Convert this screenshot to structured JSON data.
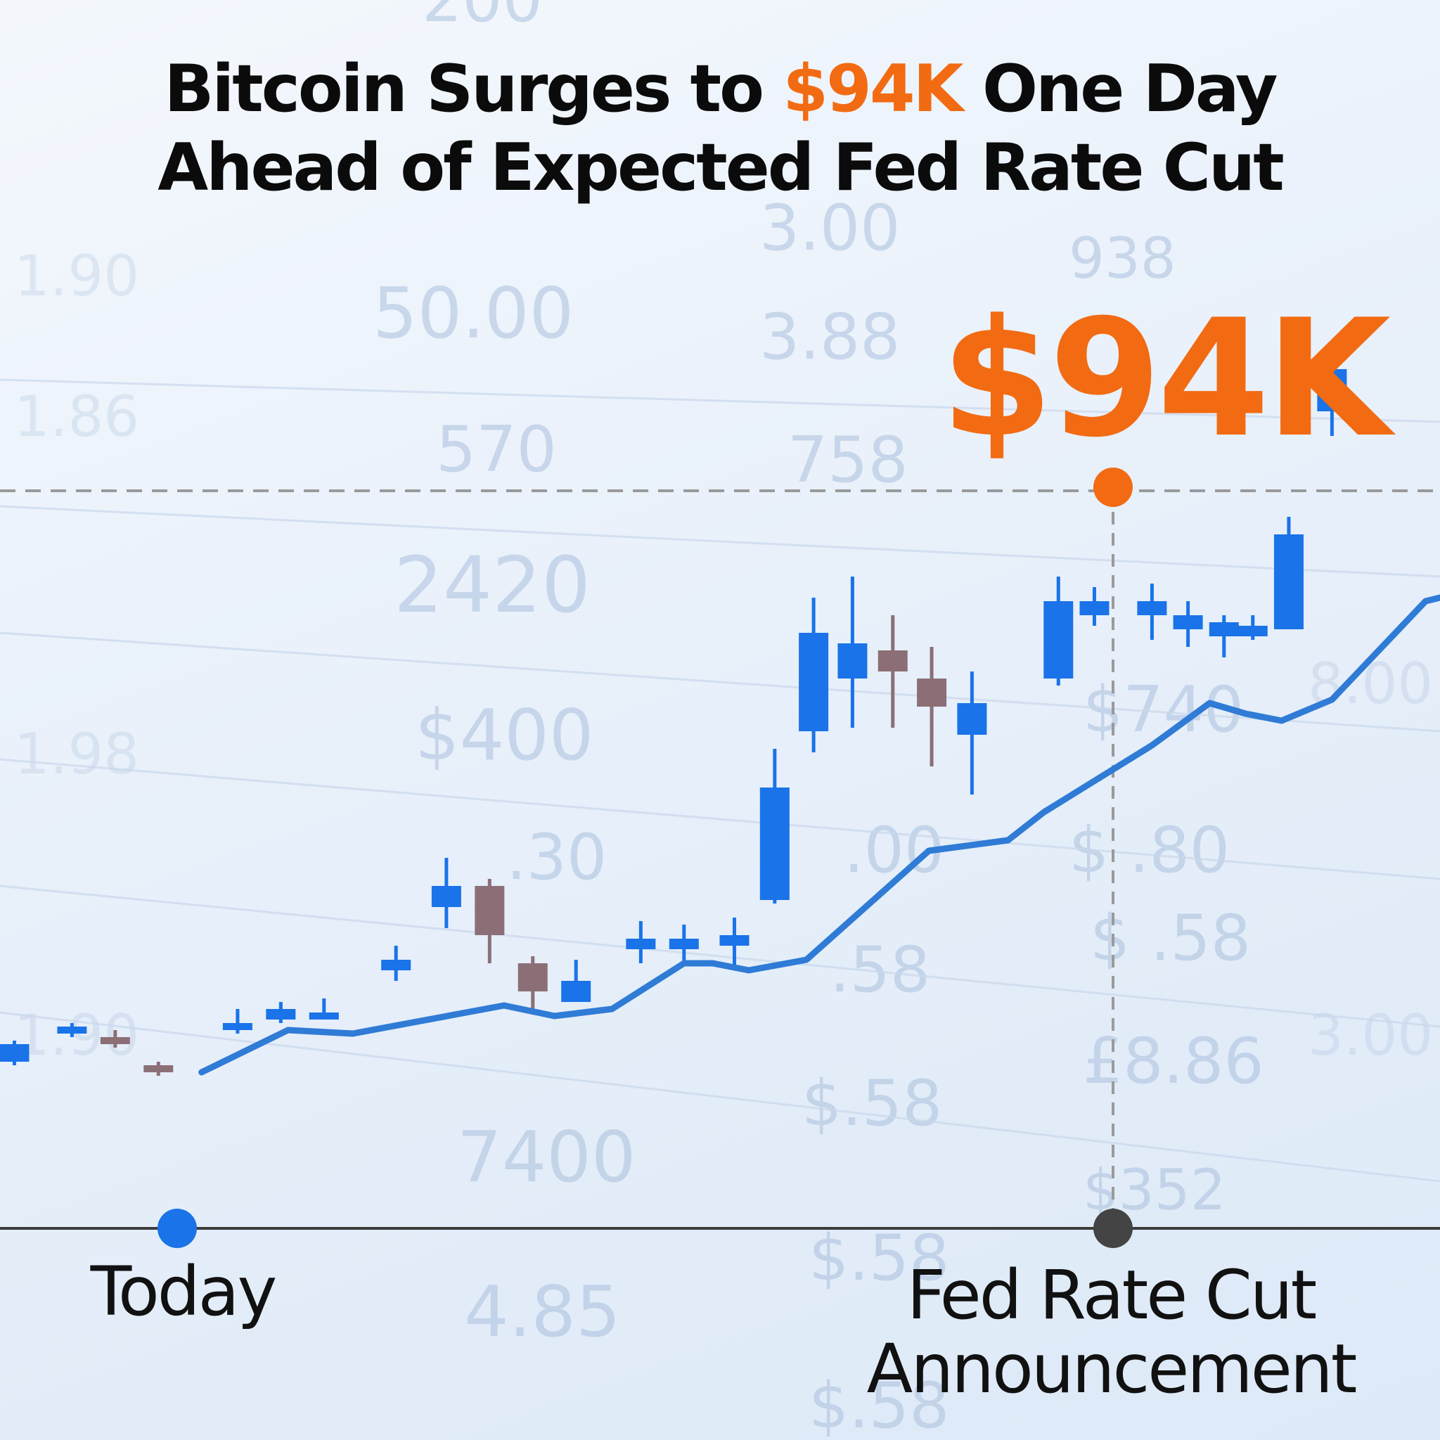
{
  "headline": {
    "before": "Bitcoin Surges to ",
    "highlight": "$94K",
    "after_line1": " One Day",
    "line2": "Ahead of Expected Fed Rate Cut"
  },
  "callout": {
    "price": "$94K"
  },
  "colors": {
    "accent": "#f26b12",
    "bull": "#1a73e8",
    "bear": "#8c6f76",
    "line": "#2f7bd6",
    "today_marker": "#1a73e8",
    "fed_marker": "#444444"
  },
  "chart_data": {
    "type": "line",
    "annotations": [
      {
        "label": "Today",
        "x": 0.12
      },
      {
        "label": "Fed Rate Cut Announcement",
        "x": 0.77
      }
    ],
    "peak_label": "$94K",
    "series": [
      {
        "type": "candlestick",
        "values": [
          {
            "x": 0.01,
            "open": 0.1,
            "close": 0.15,
            "high": 0.16,
            "low": 0.09
          },
          {
            "x": 0.05,
            "open": 0.18,
            "close": 0.2,
            "high": 0.21,
            "low": 0.17
          },
          {
            "x": 0.08,
            "open": 0.17,
            "close": 0.15,
            "high": 0.19,
            "low": 0.14
          },
          {
            "x": 0.11,
            "open": 0.09,
            "close": 0.07,
            "high": 0.1,
            "low": 0.06
          },
          {
            "x": 0.165,
            "open": 0.19,
            "close": 0.21,
            "high": 0.25,
            "low": 0.18
          },
          {
            "x": 0.195,
            "open": 0.22,
            "close": 0.25,
            "high": 0.27,
            "low": 0.21
          },
          {
            "x": 0.225,
            "open": 0.22,
            "close": 0.24,
            "high": 0.28,
            "low": 0.22
          },
          {
            "x": 0.275,
            "open": 0.36,
            "close": 0.39,
            "high": 0.43,
            "low": 0.33
          },
          {
            "x": 0.31,
            "open": 0.54,
            "close": 0.6,
            "high": 0.68,
            "low": 0.48
          },
          {
            "x": 0.34,
            "open": 0.6,
            "close": 0.46,
            "high": 0.62,
            "low": 0.38
          },
          {
            "x": 0.37,
            "open": 0.38,
            "close": 0.3,
            "high": 0.4,
            "low": 0.24
          },
          {
            "x": 0.4,
            "open": 0.27,
            "close": 0.33,
            "high": 0.39,
            "low": 0.27
          },
          {
            "x": 0.445,
            "open": 0.42,
            "close": 0.45,
            "high": 0.5,
            "low": 0.38
          },
          {
            "x": 0.475,
            "open": 0.42,
            "close": 0.45,
            "high": 0.49,
            "low": 0.38
          },
          {
            "x": 0.51,
            "open": 0.43,
            "close": 0.46,
            "high": 0.51,
            "low": 0.37
          },
          {
            "x": 0.538,
            "open": 0.56,
            "close": 0.88,
            "high": 0.99,
            "low": 0.55
          },
          {
            "x": 0.565,
            "open": 1.04,
            "close": 1.32,
            "high": 1.42,
            "low": 0.98
          },
          {
            "x": 0.592,
            "open": 1.19,
            "close": 1.29,
            "high": 1.48,
            "low": 1.05
          },
          {
            "x": 0.62,
            "open": 1.27,
            "close": 1.21,
            "high": 1.37,
            "low": 1.05
          },
          {
            "x": 0.647,
            "open": 1.19,
            "close": 1.11,
            "high": 1.28,
            "low": 0.94
          },
          {
            "x": 0.675,
            "open": 1.03,
            "close": 1.12,
            "high": 1.21,
            "low": 0.86
          },
          {
            "x": 0.735,
            "open": 1.19,
            "close": 1.41,
            "high": 1.48,
            "low": 1.17
          },
          {
            "x": 0.76,
            "open": 1.37,
            "close": 1.41,
            "high": 1.45,
            "low": 1.34
          },
          {
            "x": 0.8,
            "open": 1.37,
            "close": 1.41,
            "high": 1.46,
            "low": 1.3
          },
          {
            "x": 0.825,
            "open": 1.33,
            "close": 1.37,
            "high": 1.41,
            "low": 1.28
          },
          {
            "x": 0.85,
            "open": 1.31,
            "close": 1.35,
            "high": 1.37,
            "low": 1.25
          },
          {
            "x": 0.87,
            "open": 1.31,
            "close": 1.34,
            "high": 1.37,
            "low": 1.3
          },
          {
            "x": 0.895,
            "open": 1.33,
            "close": 1.6,
            "high": 1.65,
            "low": 1.33
          },
          {
            "x": 0.925,
            "open": 1.95,
            "close": 2.07,
            "high": 2.12,
            "low": 1.88
          }
        ]
      },
      {
        "type": "line",
        "values": [
          {
            "x": 0.14,
            "y": 0.07
          },
          {
            "x": 0.2,
            "y": 0.19
          },
          {
            "x": 0.245,
            "y": 0.18
          },
          {
            "x": 0.35,
            "y": 0.26
          },
          {
            "x": 0.385,
            "y": 0.23
          },
          {
            "x": 0.425,
            "y": 0.25
          },
          {
            "x": 0.475,
            "y": 0.38
          },
          {
            "x": 0.495,
            "y": 0.38
          },
          {
            "x": 0.52,
            "y": 0.36
          },
          {
            "x": 0.56,
            "y": 0.39
          },
          {
            "x": 0.645,
            "y": 0.7
          },
          {
            "x": 0.7,
            "y": 0.73
          },
          {
            "x": 0.725,
            "y": 0.81
          },
          {
            "x": 0.8,
            "y": 1.0
          },
          {
            "x": 0.84,
            "y": 1.12
          },
          {
            "x": 0.865,
            "y": 1.09
          },
          {
            "x": 0.89,
            "y": 1.07
          },
          {
            "x": 0.925,
            "y": 1.13
          },
          {
            "x": 0.99,
            "y": 1.41
          },
          {
            "x": 1.0,
            "y": 1.42
          }
        ]
      }
    ]
  }
}
